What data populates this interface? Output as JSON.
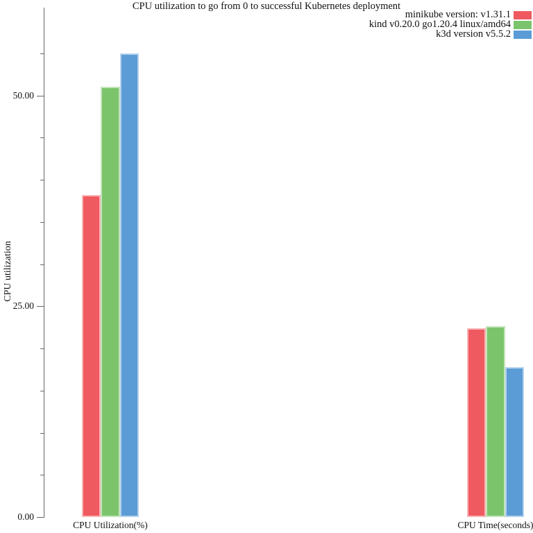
{
  "chart_data": {
    "type": "bar",
    "title": "CPU utilization to go from 0 to successful Kubernetes deployment",
    "ylabel": "CPU utilization",
    "xlabel": "",
    "categories": [
      "CPU Utilization(%)",
      "CPU Time(seconds)"
    ],
    "series": [
      {
        "name": "minikube version: v1.31.1",
        "color": "#ef5a60",
        "values": [
          38.2,
          22.4
        ]
      },
      {
        "name": "kind v0.20.0 go1.20.4 linux/amd64",
        "color": "#7cc46c",
        "values": [
          51.0,
          22.6
        ]
      },
      {
        "name": "k3d version v5.5.2",
        "color": "#5b9cd6",
        "values": [
          55.0,
          17.8
        ]
      }
    ],
    "ylim": [
      0,
      60.4
    ],
    "yticks_major": [
      0,
      25,
      50
    ],
    "ytick_labels": [
      "0.00",
      "25.00",
      "50.00"
    ],
    "yticks_minor": [
      5,
      10,
      15,
      20,
      30,
      35,
      40,
      45,
      55
    ],
    "grid": false,
    "legend_position": "top-right",
    "background_color": "#ffffff",
    "axis_color": "#666666"
  }
}
